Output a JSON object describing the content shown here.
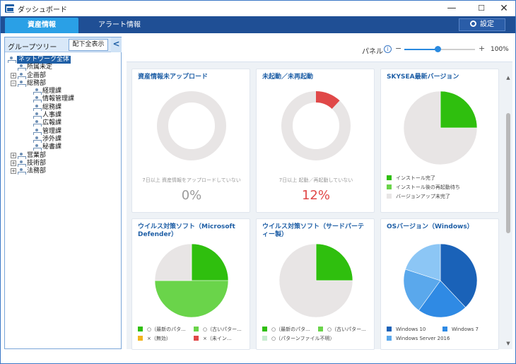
{
  "window": {
    "title": "ダッシュボード",
    "minimize": "—",
    "maximize": "☐",
    "close": "✕"
  },
  "tabs": {
    "assets": "資産情報",
    "alerts": "アラート情報",
    "settings": "設定"
  },
  "tree": {
    "header": "グループツリー",
    "expand_all": "配下全表示",
    "collapse": "<",
    "items": [
      {
        "label": "ネットワーク全体",
        "level": 0,
        "toggle": "",
        "selected": true
      },
      {
        "label": "所属未定",
        "level": 1,
        "toggle": ""
      },
      {
        "label": "企画部",
        "level": 1,
        "toggle": "+"
      },
      {
        "label": "総務部",
        "level": 1,
        "toggle": "−"
      },
      {
        "label": "経理課",
        "level": 2,
        "toggle": ""
      },
      {
        "label": "情報管理課",
        "level": 2,
        "toggle": ""
      },
      {
        "label": "総務課",
        "level": 2,
        "toggle": ""
      },
      {
        "label": "人事課",
        "level": 2,
        "toggle": ""
      },
      {
        "label": "広報課",
        "level": 2,
        "toggle": ""
      },
      {
        "label": "管理課",
        "level": 2,
        "toggle": ""
      },
      {
        "label": "渉外課",
        "level": 2,
        "toggle": ""
      },
      {
        "label": "秘書課",
        "level": 2,
        "toggle": ""
      },
      {
        "label": "営業部",
        "level": 1,
        "toggle": "+"
      },
      {
        "label": "技術部",
        "level": 1,
        "toggle": "+"
      },
      {
        "label": "法務部",
        "level": 1,
        "toggle": "+"
      }
    ]
  },
  "panel": {
    "label": "パネル",
    "info": "i",
    "minus": "−",
    "plus": "+",
    "zoom": "100%",
    "zoom_fraction": 0.47
  },
  "cards": {
    "asset_unuploaded": {
      "title": "資産情報未アップロード",
      "note": "7日以上 資産情報をアップロードしていない",
      "percent": "0%",
      "value": 0
    },
    "not_started": {
      "title": "未起動／未再起動",
      "note": "7日以上 起動／再起動していない",
      "percent": "12%",
      "value": 12
    },
    "skysea_version": {
      "title": "SKYSEA最新バージョン",
      "legend": [
        "インストール完了",
        "インストール後の再起動待ち",
        "バージョンアップ未完了"
      ]
    },
    "av_defender": {
      "title": "ウイルス対策ソフト（Microsoft Defender）",
      "legend": [
        "○（最新のパタ...",
        "○（古いパター...",
        "×（無効）",
        "×（未イン..."
      ]
    },
    "av_third": {
      "title": "ウイルス対策ソフト（サードパーティー製）",
      "legend": [
        "○（最新のパタ...",
        "○（古いパター...",
        "○（パターンファイル不明）"
      ]
    },
    "os_version": {
      "title": "OSバージョン（Windows）",
      "legend": [
        "Windows 10",
        "Windows 7",
        "Windows Server 2016"
      ]
    }
  },
  "colors": {
    "accent": "#1f5fa6",
    "green_dark": "#2fbf0e",
    "green_light": "#6ad44a",
    "gray": "#e8e5e5",
    "red": "#e04848",
    "yellow": "#f2b51e",
    "blue_dark": "#1a62b8",
    "blue_mid": "#2f8ae4",
    "blue_light": "#8cc6f5"
  },
  "chart_data": [
    {
      "type": "pie",
      "title": "資産情報未アップロード",
      "values": [
        0,
        100
      ]
    },
    {
      "type": "pie",
      "title": "未起動／未再起動",
      "values": [
        12,
        88
      ]
    },
    {
      "type": "pie",
      "title": "SKYSEA最新バージョン",
      "categories": [
        "インストール完了",
        "インストール後の再起動待ち",
        "バージョンアップ未完了"
      ],
      "values": [
        25,
        0,
        75
      ]
    },
    {
      "type": "pie",
      "title": "ウイルス対策ソフト（Microsoft Defender）",
      "categories": [
        "○（最新のパタ...",
        "○（古いパター...",
        "×（無効）",
        "×（未イン...",
        "other"
      ],
      "values": [
        25,
        50,
        0,
        0,
        25
      ]
    },
    {
      "type": "pie",
      "title": "ウイルス対策ソフト（サードパーティー製）",
      "categories": [
        "○（最新のパタ...",
        "○（古いパター...",
        "○（パターンファイル不明）",
        "other"
      ],
      "values": [
        25,
        0,
        0,
        75
      ]
    },
    {
      "type": "pie",
      "title": "OSバージョン（Windows）",
      "categories": [
        "Windows 10",
        "Windows 7",
        "Windows Server 2016",
        "other"
      ],
      "values": [
        38,
        22,
        20,
        20
      ]
    }
  ]
}
